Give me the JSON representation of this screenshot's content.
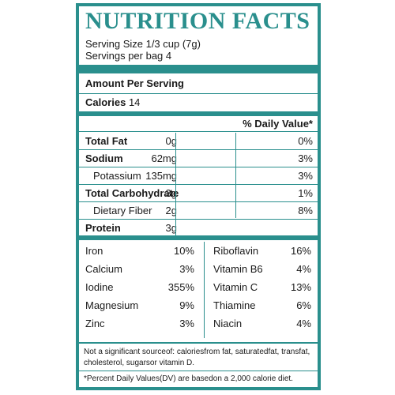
{
  "title": "NUTRITION FACTS",
  "serving_size": "Serving Size 1/3 cup (7g)",
  "servings_per_bag": "Servings per bag 4",
  "amount_per_serving": "Amount Per Serving",
  "calories_label": "Calories",
  "calories_value": "14",
  "daily_value_header": "% Daily Value*",
  "nutrients": [
    {
      "name": "Total Fat",
      "amount": "0g",
      "dv": "0%",
      "bold": true,
      "indent": false
    },
    {
      "name": "Sodium",
      "amount": "62mg",
      "dv": "3%",
      "bold": true,
      "indent": false
    },
    {
      "name": "Potassium",
      "amount": "135mg",
      "dv": "3%",
      "bold": false,
      "indent": true
    },
    {
      "name": "Total Carbohydrate",
      "amount": "3g",
      "dv": "1%",
      "bold": true,
      "indent": false
    },
    {
      "name": "Dietary Fiber",
      "amount": "2g",
      "dv": "8%",
      "bold": false,
      "indent": true
    },
    {
      "name": "Protein",
      "amount": "3g",
      "dv": "",
      "bold": true,
      "indent": false
    }
  ],
  "vitamins_left": [
    {
      "name": "Iron",
      "value": "10%"
    },
    {
      "name": "Calcium",
      "value": "3%"
    },
    {
      "name": "Iodine",
      "value": "355%"
    },
    {
      "name": "Magnesium",
      "value": "9%"
    },
    {
      "name": "Zinc",
      "value": "3%"
    }
  ],
  "vitamins_right": [
    {
      "name": "Riboflavin",
      "value": "16%"
    },
    {
      "name": "Vitamin B6",
      "value": "4%"
    },
    {
      "name": "Vitamin C",
      "value": "13%"
    },
    {
      "name": "Thiamine",
      "value": "6%"
    },
    {
      "name": "Niacin",
      "value": "4%"
    }
  ],
  "footnote_significant": "Not a significant sourceof: caloriesfrom fat, saturatedfat, transfat, cholesterol, sugarsor vitamin  D.",
  "footnote_dv": "*Percent Daily Values(DV)  are basedon a 2,000 calorie diet.",
  "colors": {
    "accent": "#2a8f8d",
    "text": "#1a1a1a",
    "background": "#ffffff"
  }
}
